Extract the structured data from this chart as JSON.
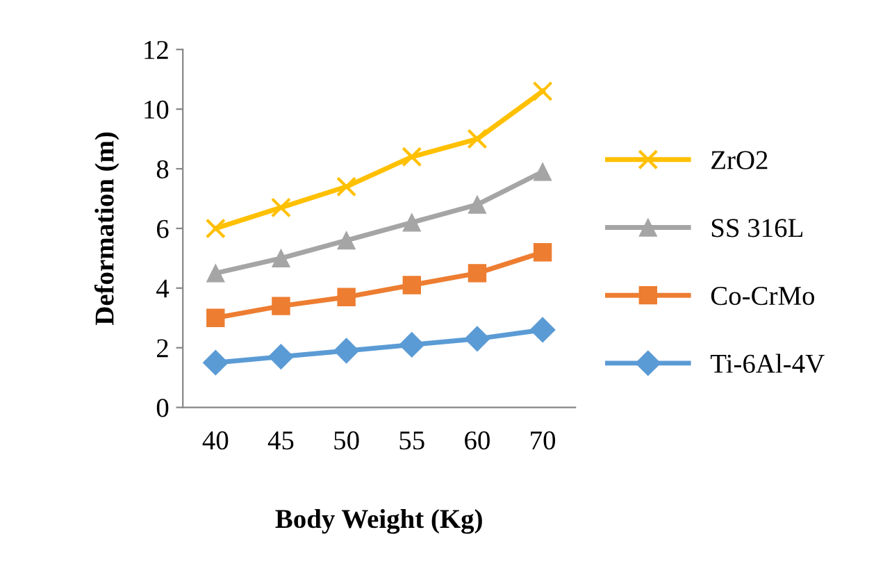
{
  "chart_data": {
    "type": "line",
    "xlabel": "Body Weight (Kg)",
    "ylabel": "Deformation (m)",
    "categories": [
      "40",
      "45",
      "50",
      "55",
      "60",
      "70"
    ],
    "series": [
      {
        "name": "ZrO2",
        "color": "#ffc000",
        "marker": "cross",
        "values": [
          6.0,
          6.7,
          7.4,
          8.4,
          9.0,
          10.6
        ]
      },
      {
        "name": "SS 316L",
        "color": "#a5a5a5",
        "marker": "triangle",
        "values": [
          4.5,
          5.0,
          5.6,
          6.2,
          6.8,
          7.9
        ]
      },
      {
        "name": "Co-CrMo",
        "color": "#ed7d31",
        "marker": "square",
        "values": [
          3.0,
          3.4,
          3.7,
          4.1,
          4.5,
          5.2
        ]
      },
      {
        "name": "Ti-6Al-4V",
        "color": "#5b9bd5",
        "marker": "diamond",
        "values": [
          1.5,
          1.7,
          1.9,
          2.1,
          2.3,
          2.6
        ]
      }
    ],
    "ylim": [
      0,
      12
    ],
    "yticks": [
      0,
      2,
      4,
      6,
      8,
      10,
      12
    ],
    "grid": false,
    "legend": "right"
  }
}
